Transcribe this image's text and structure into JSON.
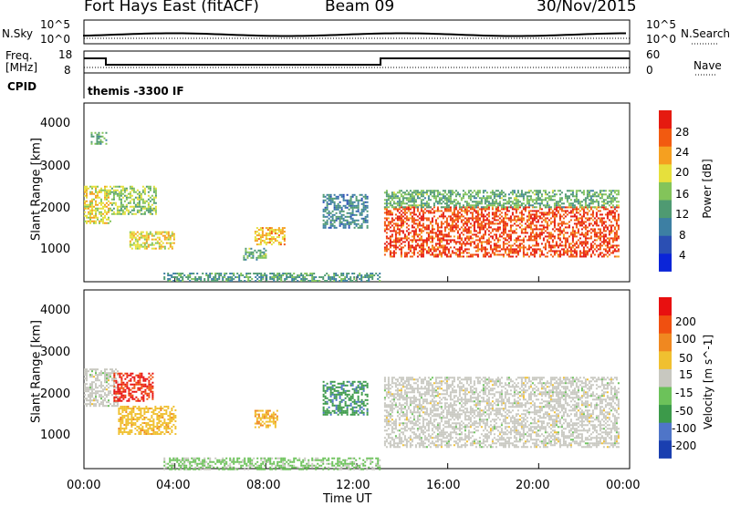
{
  "header": {
    "station": "Fort Hays East (fitACF)",
    "beam": "Beam 09",
    "date": "30/Nov/2015"
  },
  "noise_panel": {
    "left_label": "N.Sky",
    "right_label": "N.Search",
    "left_ticks": [
      "10^5",
      "10^0"
    ],
    "right_ticks": [
      "10^5",
      "10^0"
    ]
  },
  "freq_panel": {
    "left_label_1": "Freq.",
    "left_label_2": "[MHz]",
    "right_label": "Nave",
    "left_ticks": [
      "18",
      "8"
    ],
    "right_ticks": [
      "60",
      "0"
    ],
    "cpid_label": "CPID",
    "cpid_text": "themis -3300 IF"
  },
  "x_axis": {
    "title": "Time UT",
    "ticks": [
      "00:00",
      "04:00",
      "08:00",
      "12:00",
      "16:00",
      "20:00",
      "00:00"
    ]
  },
  "power_panel": {
    "ylabel": "Slant Range [km]",
    "yticks": [
      "4000",
      "3000",
      "2000",
      "1000"
    ],
    "colorbar_label": "Power [dB]",
    "colorbar_ticks": [
      "28",
      "24",
      "20",
      "16",
      "12",
      "8",
      "4"
    ]
  },
  "velocity_panel": {
    "ylabel": "Slant Range [km]",
    "yticks": [
      "4000",
      "3000",
      "2000",
      "1000"
    ],
    "colorbar_label": "Velocity [m s^-1]",
    "colorbar_ticks": [
      "200",
      "100",
      "50",
      "15",
      "-15",
      "-50",
      "-100",
      "-200"
    ]
  },
  "chart_data": [
    {
      "type": "heatmap",
      "title": "Power",
      "xlabel": "Time UT",
      "ylabel": "Slant Range [km]",
      "xlim": [
        0,
        24
      ],
      "ylim": [
        180,
        4500
      ],
      "colorbar": {
        "label": "Power [dB]",
        "range": [
          0,
          32
        ],
        "colors": [
          "#0b25d8",
          "#2b4fb3",
          "#3d7fa3",
          "#4f9a72",
          "#83c45a",
          "#e6e03c",
          "#f5a020",
          "#f25a10",
          "#e51a10"
        ]
      },
      "echo_regions": [
        {
          "t0": 0.0,
          "t1": 1.2,
          "r0": 1600,
          "r1": 2500,
          "power": 20
        },
        {
          "t0": 0.3,
          "t1": 1.0,
          "r0": 3500,
          "r1": 3800,
          "power": 14
        },
        {
          "t0": 1.2,
          "t1": 3.2,
          "r0": 1800,
          "r1": 2500,
          "power": 16
        },
        {
          "t0": 2.0,
          "t1": 4.0,
          "r0": 1000,
          "r1": 1400,
          "power": 20
        },
        {
          "t0": 7.5,
          "t1": 8.8,
          "r0": 1100,
          "r1": 1500,
          "power": 22
        },
        {
          "t0": 7.0,
          "t1": 8.0,
          "r0": 700,
          "r1": 1000,
          "power": 14
        },
        {
          "t0": 10.5,
          "t1": 12.5,
          "r0": 1500,
          "r1": 2300,
          "power": 10
        },
        {
          "t0": 13.2,
          "t1": 23.5,
          "r0": 800,
          "r1": 2000,
          "power": 28
        },
        {
          "t0": 13.2,
          "t1": 23.5,
          "r0": 2000,
          "r1": 2400,
          "power": 14
        },
        {
          "t0": 3.5,
          "t1": 13.0,
          "r0": 180,
          "r1": 400,
          "power": 12
        }
      ]
    },
    {
      "type": "heatmap",
      "title": "Velocity",
      "xlabel": "Time UT",
      "ylabel": "Slant Range [km]",
      "xlim": [
        0,
        24
      ],
      "ylim": [
        180,
        4500
      ],
      "colorbar": {
        "label": "Velocity [m s^-1]",
        "range": [
          -250,
          250
        ],
        "colors": [
          "#1a3fb0",
          "#4f75c8",
          "#3c9a4a",
          "#6cc25a",
          "#c8c8c0",
          "#f0c030",
          "#f08820",
          "#f05010",
          "#e81010"
        ]
      },
      "echo_regions": [
        {
          "t0": 0.0,
          "t1": 1.5,
          "r0": 1700,
          "r1": 2600,
          "velocity": 0
        },
        {
          "t0": 1.3,
          "t1": 3.0,
          "r0": 1800,
          "r1": 2500,
          "velocity": 200
        },
        {
          "t0": 1.5,
          "t1": 4.0,
          "r0": 1000,
          "r1": 1700,
          "velocity": 60
        },
        {
          "t0": 7.5,
          "t1": 8.5,
          "r0": 1200,
          "r1": 1600,
          "velocity": 70
        },
        {
          "t0": 10.5,
          "t1": 12.5,
          "r0": 1500,
          "r1": 2300,
          "velocity": -120
        },
        {
          "t0": 13.2,
          "t1": 23.5,
          "r0": 700,
          "r1": 2400,
          "velocity": 0
        },
        {
          "t0": 3.5,
          "t1": 13.0,
          "r0": 180,
          "r1": 450,
          "velocity": -40
        }
      ]
    }
  ]
}
